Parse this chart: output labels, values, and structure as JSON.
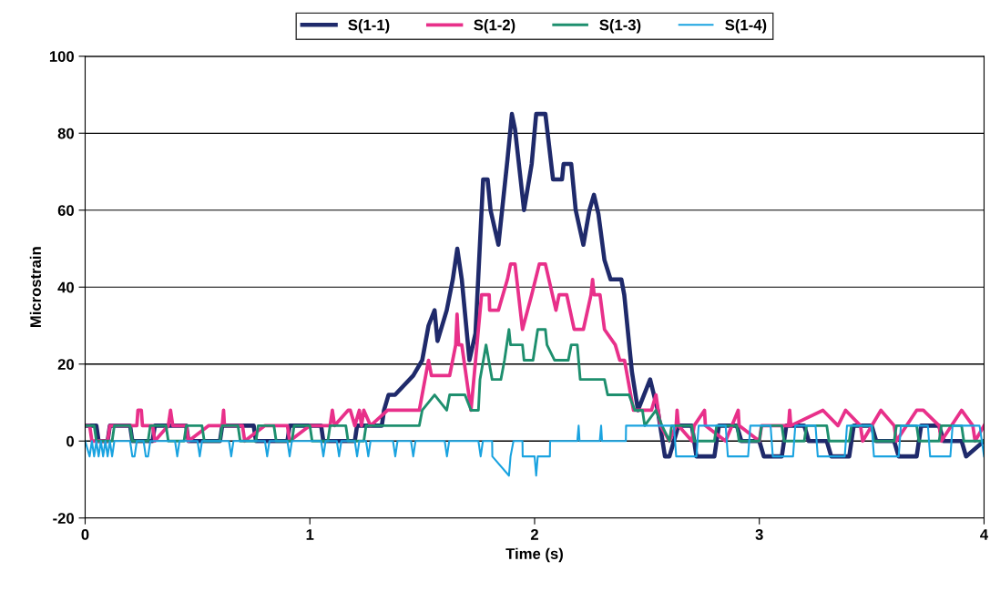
{
  "chart_data": {
    "type": "line",
    "xlabel": "Time (s)",
    "ylabel": "Microstrain",
    "xlim": [
      0,
      4
    ],
    "xticks": [
      0,
      1,
      2,
      3,
      4
    ],
    "ylim": [
      -20,
      100
    ],
    "yticks": [
      -20,
      0,
      20,
      40,
      60,
      80,
      100
    ],
    "grid": "y",
    "legend": "top",
    "marker": "none",
    "line_style": "solid",
    "series": [
      {
        "name": "S(1-1)",
        "color": "#1f2a6b",
        "x": [
          0,
          0.05,
          0.06,
          0.1,
          0.11,
          0.2,
          0.21,
          0.3,
          0.31,
          0.45,
          0.46,
          0.6,
          0.61,
          0.75,
          0.76,
          0.9,
          0.91,
          1.05,
          1.06,
          1.2,
          1.21,
          1.32,
          1.33,
          1.35,
          1.379,
          1.46,
          1.5,
          1.528,
          1.555,
          1.568,
          1.609,
          1.636,
          1.656,
          1.676,
          1.71,
          1.737,
          1.771,
          1.791,
          1.804,
          1.839,
          1.879,
          1.899,
          1.913,
          1.953,
          1.987,
          2.007,
          2.048,
          2.082,
          2.122,
          2.129,
          2.163,
          2.183,
          2.217,
          2.244,
          2.264,
          2.284,
          2.311,
          2.338,
          2.386,
          2.399,
          2.433,
          2.46,
          2.514,
          2.548,
          2.58,
          2.6,
          2.62,
          2.64,
          2.7,
          2.72,
          2.8,
          2.82,
          2.9,
          2.92,
          3.0,
          3.02,
          3.1,
          3.12,
          3.2,
          3.22,
          3.3,
          3.32,
          3.4,
          3.42,
          3.5,
          3.52,
          3.6,
          3.62,
          3.7,
          3.72,
          3.8,
          3.82,
          3.9,
          3.92,
          4.0
        ],
        "values": [
          4,
          4,
          0,
          0,
          4,
          4,
          0,
          0,
          4,
          4,
          0,
          0,
          4,
          4,
          0,
          0,
          4,
          4,
          0,
          0,
          4,
          4,
          8,
          12,
          12,
          17,
          21,
          30,
          34,
          26,
          34,
          42,
          50,
          42,
          21,
          28,
          68,
          68,
          60,
          51,
          73,
          85,
          81,
          60,
          72,
          85,
          85,
          68,
          68,
          72,
          72,
          60,
          51,
          60,
          64,
          59,
          47,
          42,
          42,
          38,
          18,
          8,
          16,
          8,
          -4,
          -4,
          0,
          4,
          4,
          -4,
          -4,
          4,
          4,
          0,
          0,
          -4,
          -4,
          4,
          4,
          0,
          0,
          -4,
          -4,
          4,
          4,
          0,
          0,
          -4,
          -4,
          4,
          4,
          0,
          0,
          -4,
          0
        ]
      },
      {
        "name": "S(1-2)",
        "color": "#e8308a",
        "x": [
          0,
          0.02,
          0.03,
          0.1,
          0.11,
          0.14,
          0.15,
          0.23,
          0.235,
          0.25,
          0.255,
          0.3,
          0.31,
          0.37,
          0.38,
          0.39,
          0.45,
          0.46,
          0.55,
          0.56,
          0.61,
          0.616,
          0.62,
          0.7,
          0.71,
          0.8,
          0.81,
          0.9,
          0.91,
          1.0,
          1.01,
          1.09,
          1.1,
          1.11,
          1.17,
          1.18,
          1.2,
          1.22,
          1.23,
          1.24,
          1.27,
          1.346,
          1.487,
          1.528,
          1.541,
          1.622,
          1.649,
          1.655,
          1.662,
          1.676,
          1.717,
          1.764,
          1.798,
          1.8,
          1.839,
          1.879,
          1.893,
          1.913,
          1.946,
          1.987,
          2.021,
          2.048,
          2.095,
          2.109,
          2.143,
          2.176,
          2.217,
          2.251,
          2.258,
          2.265,
          2.291,
          2.311,
          2.359,
          2.379,
          2.4,
          2.44,
          2.52,
          2.54,
          2.56,
          2.6,
          2.63,
          2.634,
          2.64,
          2.7,
          2.71,
          2.756,
          2.76,
          2.85,
          2.906,
          2.91,
          3.0,
          3.01,
          3.13,
          3.135,
          3.14,
          3.283,
          3.35,
          3.384,
          3.45,
          3.46,
          3.541,
          3.6,
          3.61,
          3.7,
          3.73,
          3.8,
          3.81,
          3.9,
          3.95,
          3.96,
          4.0
        ],
        "values": [
          4,
          4,
          0,
          0,
          4,
          4,
          4,
          4,
          8,
          8,
          4,
          4,
          0,
          4,
          8,
          4,
          4,
          0,
          4,
          4,
          4,
          8,
          4,
          4,
          0,
          4,
          4,
          4,
          0,
          4,
          4,
          4,
          8,
          4,
          8,
          8,
          4,
          8,
          4,
          8,
          4,
          8,
          8,
          21,
          17,
          17,
          25,
          33,
          25,
          25,
          8,
          38,
          38,
          34,
          34,
          42,
          46,
          46,
          29,
          38,
          46,
          46,
          34,
          38,
          38,
          29,
          29,
          38,
          42,
          38,
          38,
          29,
          25,
          21,
          21,
          8,
          8,
          12,
          4,
          0,
          4,
          8,
          4,
          0,
          4,
          8,
          4,
          0,
          8,
          4,
          0,
          4,
          4,
          8,
          4,
          8,
          4,
          8,
          4,
          0,
          8,
          4,
          0,
          8,
          8,
          4,
          0,
          8,
          4,
          0,
          4
        ]
      },
      {
        "name": "S(1-3)",
        "color": "#1e8f6e",
        "x": [
          0,
          0.04,
          0.05,
          0.12,
          0.13,
          0.2,
          0.21,
          0.28,
          0.29,
          0.36,
          0.37,
          0.44,
          0.45,
          0.52,
          0.53,
          0.6,
          0.61,
          0.68,
          0.69,
          0.76,
          0.77,
          0.84,
          0.85,
          0.92,
          0.93,
          1.0,
          1.01,
          1.08,
          1.09,
          1.16,
          1.17,
          1.24,
          1.25,
          1.32,
          1.379,
          1.487,
          1.5,
          1.555,
          1.609,
          1.622,
          1.69,
          1.717,
          1.75,
          1.757,
          1.784,
          1.811,
          1.85,
          1.866,
          1.886,
          1.893,
          1.946,
          1.953,
          1.993,
          2.014,
          2.048,
          2.055,
          2.089,
          2.15,
          2.163,
          2.19,
          2.203,
          2.311,
          2.325,
          2.42,
          2.446,
          2.48,
          2.49,
          2.54,
          2.567,
          2.6,
          2.61,
          2.7,
          2.71,
          2.8,
          2.81,
          2.9,
          2.91,
          3.0,
          3.01,
          3.1,
          3.11,
          3.2,
          3.21,
          3.3,
          3.31,
          3.4,
          3.41,
          3.5,
          3.51,
          3.6,
          3.61,
          3.7,
          3.71,
          3.8,
          3.81,
          3.9,
          3.91,
          4.0
        ],
        "values": [
          4,
          4,
          0,
          0,
          4,
          4,
          0,
          0,
          4,
          4,
          0,
          0,
          4,
          4,
          0,
          0,
          4,
          4,
          0,
          0,
          4,
          4,
          0,
          0,
          4,
          4,
          0,
          0,
          4,
          4,
          0,
          0,
          4,
          4,
          4,
          4,
          8,
          12,
          8,
          12,
          12,
          8,
          8,
          16,
          25,
          16,
          16,
          21,
          29,
          25,
          25,
          21,
          21,
          29,
          29,
          25,
          21,
          21,
          25,
          25,
          16,
          16,
          12,
          12,
          8,
          8,
          4,
          8,
          4,
          0,
          4,
          4,
          0,
          0,
          4,
          4,
          0,
          0,
          4,
          4,
          0,
          0,
          4,
          4,
          0,
          0,
          4,
          4,
          0,
          0,
          4,
          4,
          0,
          0,
          4,
          4,
          0,
          0
        ]
      },
      {
        "name": "S(1-4)",
        "color": "#1aa3e0",
        "x": [
          0,
          0.02,
          0.03,
          0.04,
          0.05,
          0.06,
          0.07,
          0.08,
          0.09,
          0.1,
          0.11,
          0.12,
          0.13,
          0.2,
          0.21,
          0.22,
          0.23,
          0.26,
          0.27,
          0.28,
          0.29,
          0.4,
          0.41,
          0.42,
          0.5,
          0.51,
          0.52,
          0.64,
          0.65,
          0.66,
          0.8,
          0.81,
          0.82,
          0.9,
          0.91,
          0.92,
          1.05,
          1.06,
          1.07,
          1.12,
          1.13,
          1.14,
          1.2,
          1.21,
          1.22,
          1.25,
          1.26,
          1.27,
          1.37,
          1.38,
          1.39,
          1.45,
          1.46,
          1.47,
          1.6,
          1.61,
          1.62,
          1.75,
          1.76,
          1.77,
          1.811,
          1.812,
          1.886,
          1.893,
          1.906,
          1.946,
          1.947,
          2.0,
          2.007,
          2.014,
          2.068,
          2.069,
          2.19,
          2.196,
          2.2,
          2.29,
          2.296,
          2.3,
          2.406,
          2.407,
          2.55,
          2.56,
          2.62,
          2.63,
          2.72,
          2.73,
          2.85,
          2.86,
          2.95,
          2.96,
          3.05,
          3.06,
          3.15,
          3.16,
          3.25,
          3.26,
          3.38,
          3.39,
          3.5,
          3.51,
          3.62,
          3.63,
          3.75,
          3.76,
          3.85,
          3.86,
          3.98,
          4.0
        ],
        "values": [
          0,
          -4,
          0,
          -4,
          0,
          -4,
          0,
          -4,
          0,
          -4,
          0,
          -4,
          0,
          0,
          -4,
          -4,
          0,
          0,
          -4,
          -4,
          0,
          0,
          -4,
          0,
          0,
          -4,
          0,
          0,
          -4,
          0,
          0,
          -4,
          0,
          0,
          -4,
          0,
          0,
          -4,
          0,
          0,
          -4,
          0,
          0,
          -4,
          0,
          0,
          -4,
          0,
          0,
          -4,
          0,
          0,
          -4,
          0,
          0,
          -4,
          0,
          0,
          -4,
          0,
          0,
          -4,
          -9,
          -4,
          0,
          0,
          -4,
          -4,
          -9,
          -4,
          -4,
          0,
          0,
          4,
          0,
          0,
          4,
          0,
          0,
          4,
          4,
          4,
          4,
          -4,
          -4,
          4,
          4,
          -4,
          -4,
          4,
          4,
          -4,
          -4,
          4,
          4,
          -4,
          -4,
          4,
          4,
          -4,
          -4,
          4,
          4,
          -4,
          -4,
          4,
          4,
          -4
        ]
      }
    ]
  }
}
